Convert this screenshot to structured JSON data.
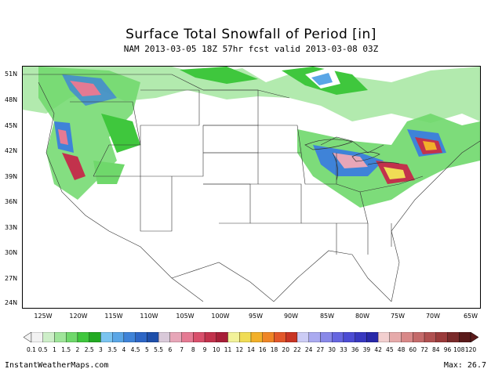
{
  "title": "Surface Total Snowfall of Period [in]",
  "subtitle": "NAM 2013-03-05 18Z 57hr fcst valid 2013-03-08 03Z",
  "latitudes": [
    "51N",
    "48N",
    "45N",
    "42N",
    "39N",
    "36N",
    "33N",
    "30N",
    "27N",
    "24N"
  ],
  "longitudes": [
    "125W",
    "120W",
    "115W",
    "110W",
    "105W",
    "100W",
    "95W",
    "90W",
    "85W",
    "80W",
    "75W",
    "70W",
    "65W"
  ],
  "colorbar": {
    "labels": [
      "0.1",
      "0.5",
      "1",
      "1.5",
      "2",
      "2.5",
      "3",
      "3.5",
      "4",
      "4.5",
      "5",
      "5.5",
      "6",
      "7",
      "8",
      "9",
      "10",
      "11",
      "12",
      "14",
      "16",
      "18",
      "20",
      "22",
      "24",
      "27",
      "30",
      "33",
      "36",
      "39",
      "42",
      "45",
      "48",
      "60",
      "72",
      "84",
      "96",
      "108",
      "120"
    ],
    "colors": [
      "#f2f2f2",
      "#cdeec8",
      "#9fe59a",
      "#6fd86b",
      "#3fc73d",
      "#22aa22",
      "#7bc4f0",
      "#5aa6e6",
      "#3f83d8",
      "#2d66c6",
      "#1f4faa",
      "#d9c9d9",
      "#e7a6b8",
      "#e57a93",
      "#d94f6b",
      "#c2324c",
      "#a71f38",
      "#f2f29a",
      "#f0dc55",
      "#f2b02a",
      "#ef8526",
      "#e2572a",
      "#c83424",
      "#ccccf5",
      "#aaaaf0",
      "#8888e8",
      "#6666e0",
      "#4c4cd4",
      "#3838c0",
      "#2828a8",
      "#f2cfcf",
      "#e6aaaa",
      "#d88888",
      "#c46a6a",
      "#b05050",
      "#9a3a3a",
      "#7a2a2a",
      "#5a1a1a"
    ]
  },
  "footer": {
    "site": "InstantWeatherMaps.com",
    "max": "Max:  26.7"
  }
}
